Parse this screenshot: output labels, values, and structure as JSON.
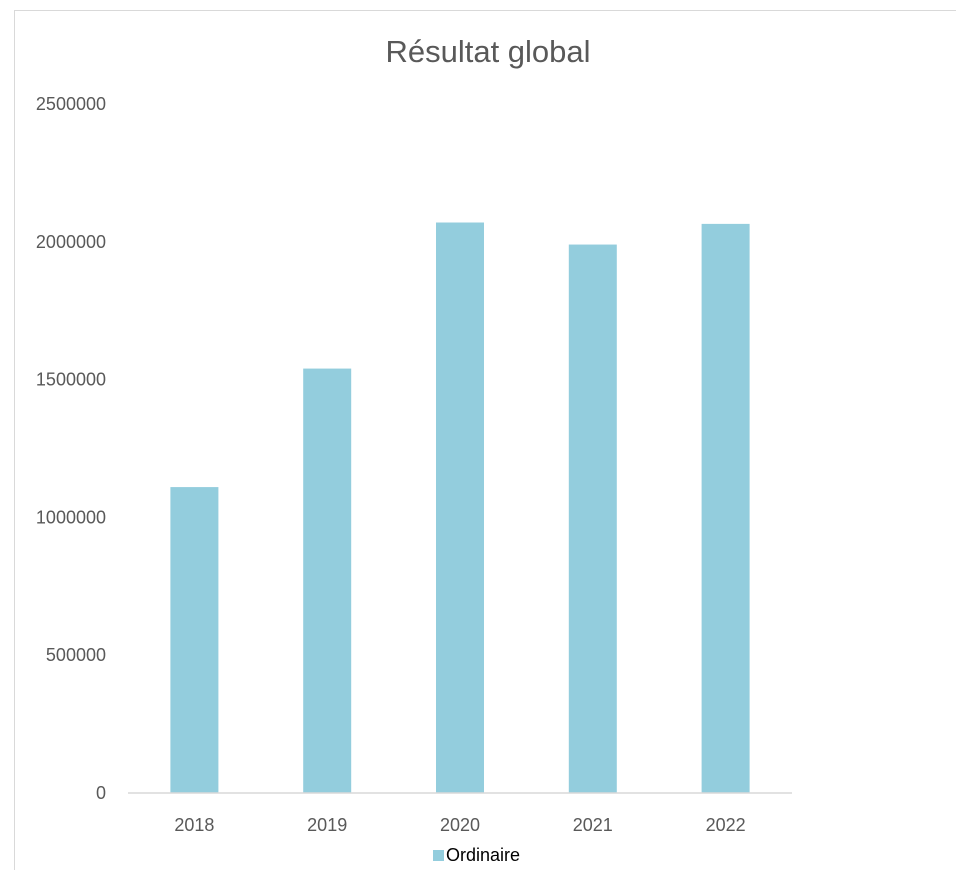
{
  "chart_data": {
    "type": "bar",
    "title": "Résultat global",
    "xlabel": "",
    "ylabel": "",
    "categories": [
      "2018",
      "2019",
      "2020",
      "2021",
      "2022"
    ],
    "series": [
      {
        "name": "Ordinaire",
        "values": [
          1110000,
          1540000,
          2070000,
          1990000,
          2065000
        ],
        "color": "#93cddd"
      }
    ],
    "ylim": [
      0,
      2500000
    ],
    "yticks": [
      "0",
      "500000",
      "1000000",
      "1500000",
      "2000000",
      "2500000"
    ],
    "grid": false,
    "legend": "bottom"
  }
}
